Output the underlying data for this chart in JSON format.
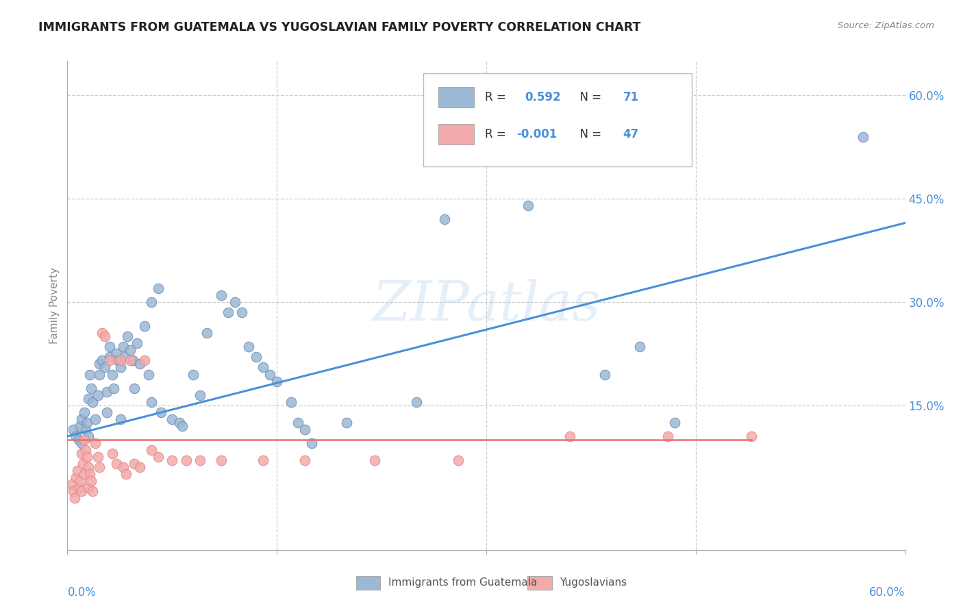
{
  "title": "IMMIGRANTS FROM GUATEMALA VS YUGOSLAVIAN FAMILY POVERTY CORRELATION CHART",
  "source": "Source: ZipAtlas.com",
  "ylabel": "Family Poverty",
  "xlim": [
    0.0,
    0.6
  ],
  "ylim": [
    -0.06,
    0.65
  ],
  "ytick_labels": [
    "15.0%",
    "30.0%",
    "45.0%",
    "60.0%"
  ],
  "ytick_values": [
    0.15,
    0.3,
    0.45,
    0.6
  ],
  "xtick_values": [
    0.0,
    0.15,
    0.3,
    0.45,
    0.6
  ],
  "watermark": "ZIPatlas",
  "legend_label1": "Immigrants from Guatemala",
  "legend_label2": "Yugoslavians",
  "r1": "0.592",
  "n1": "71",
  "r2": "-0.001",
  "n2": "47",
  "blue_color": "#9BB8D4",
  "pink_color": "#F4AAAA",
  "blue_edge": "#7090B8",
  "pink_edge": "#E08888",
  "line_blue": "#4A90D9",
  "line_pink": "#E87070",
  "text_blue": "#4A90D9",
  "blue_scatter": [
    [
      0.004,
      0.115
    ],
    [
      0.006,
      0.105
    ],
    [
      0.008,
      0.1
    ],
    [
      0.009,
      0.12
    ],
    [
      0.01,
      0.095
    ],
    [
      0.01,
      0.13
    ],
    [
      0.012,
      0.14
    ],
    [
      0.013,
      0.115
    ],
    [
      0.014,
      0.125
    ],
    [
      0.015,
      0.105
    ],
    [
      0.015,
      0.16
    ],
    [
      0.016,
      0.195
    ],
    [
      0.017,
      0.175
    ],
    [
      0.018,
      0.155
    ],
    [
      0.02,
      0.13
    ],
    [
      0.022,
      0.165
    ],
    [
      0.023,
      0.21
    ],
    [
      0.023,
      0.195
    ],
    [
      0.025,
      0.215
    ],
    [
      0.027,
      0.205
    ],
    [
      0.028,
      0.17
    ],
    [
      0.028,
      0.14
    ],
    [
      0.03,
      0.235
    ],
    [
      0.03,
      0.22
    ],
    [
      0.032,
      0.195
    ],
    [
      0.033,
      0.175
    ],
    [
      0.035,
      0.225
    ],
    [
      0.036,
      0.215
    ],
    [
      0.038,
      0.205
    ],
    [
      0.038,
      0.13
    ],
    [
      0.04,
      0.235
    ],
    [
      0.041,
      0.22
    ],
    [
      0.043,
      0.25
    ],
    [
      0.045,
      0.23
    ],
    [
      0.047,
      0.215
    ],
    [
      0.048,
      0.175
    ],
    [
      0.05,
      0.24
    ],
    [
      0.052,
      0.21
    ],
    [
      0.055,
      0.265
    ],
    [
      0.058,
      0.195
    ],
    [
      0.06,
      0.3
    ],
    [
      0.06,
      0.155
    ],
    [
      0.065,
      0.32
    ],
    [
      0.067,
      0.14
    ],
    [
      0.075,
      0.13
    ],
    [
      0.08,
      0.125
    ],
    [
      0.082,
      0.12
    ],
    [
      0.09,
      0.195
    ],
    [
      0.095,
      0.165
    ],
    [
      0.1,
      0.255
    ],
    [
      0.11,
      0.31
    ],
    [
      0.115,
      0.285
    ],
    [
      0.12,
      0.3
    ],
    [
      0.125,
      0.285
    ],
    [
      0.13,
      0.235
    ],
    [
      0.135,
      0.22
    ],
    [
      0.14,
      0.205
    ],
    [
      0.145,
      0.195
    ],
    [
      0.15,
      0.185
    ],
    [
      0.16,
      0.155
    ],
    [
      0.165,
      0.125
    ],
    [
      0.17,
      0.115
    ],
    [
      0.175,
      0.095
    ],
    [
      0.2,
      0.125
    ],
    [
      0.25,
      0.155
    ],
    [
      0.27,
      0.42
    ],
    [
      0.33,
      0.44
    ],
    [
      0.385,
      0.195
    ],
    [
      0.41,
      0.235
    ],
    [
      0.435,
      0.125
    ],
    [
      0.57,
      0.54
    ]
  ],
  "pink_scatter": [
    [
      0.003,
      0.035
    ],
    [
      0.004,
      0.025
    ],
    [
      0.005,
      0.015
    ],
    [
      0.006,
      0.045
    ],
    [
      0.007,
      0.055
    ],
    [
      0.008,
      0.03
    ],
    [
      0.009,
      0.04
    ],
    [
      0.01,
      0.025
    ],
    [
      0.01,
      0.08
    ],
    [
      0.011,
      0.065
    ],
    [
      0.012,
      0.05
    ],
    [
      0.012,
      0.1
    ],
    [
      0.013,
      0.085
    ],
    [
      0.014,
      0.075
    ],
    [
      0.015,
      0.06
    ],
    [
      0.015,
      0.03
    ],
    [
      0.016,
      0.05
    ],
    [
      0.017,
      0.04
    ],
    [
      0.018,
      0.025
    ],
    [
      0.02,
      0.095
    ],
    [
      0.022,
      0.075
    ],
    [
      0.023,
      0.06
    ],
    [
      0.025,
      0.255
    ],
    [
      0.027,
      0.25
    ],
    [
      0.03,
      0.215
    ],
    [
      0.032,
      0.08
    ],
    [
      0.035,
      0.065
    ],
    [
      0.038,
      0.215
    ],
    [
      0.04,
      0.06
    ],
    [
      0.042,
      0.05
    ],
    [
      0.045,
      0.215
    ],
    [
      0.048,
      0.065
    ],
    [
      0.052,
      0.06
    ],
    [
      0.055,
      0.215
    ],
    [
      0.06,
      0.085
    ],
    [
      0.065,
      0.075
    ],
    [
      0.075,
      0.07
    ],
    [
      0.085,
      0.07
    ],
    [
      0.095,
      0.07
    ],
    [
      0.11,
      0.07
    ],
    [
      0.14,
      0.07
    ],
    [
      0.17,
      0.07
    ],
    [
      0.22,
      0.07
    ],
    [
      0.28,
      0.07
    ],
    [
      0.36,
      0.105
    ],
    [
      0.43,
      0.105
    ],
    [
      0.49,
      0.105
    ]
  ],
  "blue_line_x": [
    0.0,
    0.6
  ],
  "blue_line_y": [
    0.105,
    0.415
  ],
  "pink_line_x": [
    0.0,
    0.49
  ],
  "pink_line_y": [
    0.1,
    0.1
  ]
}
